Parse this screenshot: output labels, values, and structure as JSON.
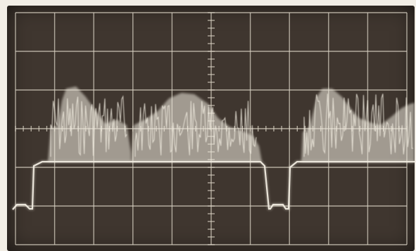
{
  "image": {
    "subject": "oscilloscope-trace-photo",
    "colors": {
      "screen": "#3f362f",
      "graticule": "#d9d2c3",
      "trace": "#f1ece0",
      "paper": "#f2eee6"
    }
  }
}
